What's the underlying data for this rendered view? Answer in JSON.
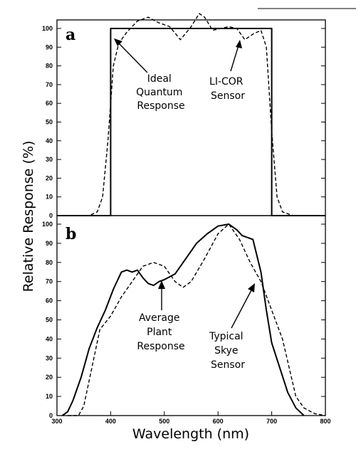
{
  "chart_data": [
    {
      "panel": "a",
      "type": "line",
      "ylabel": "Relative Response (%)",
      "xlim": [
        300,
        800
      ],
      "ylim": [
        0,
        100
      ],
      "yticks": [
        0,
        10,
        20,
        30,
        40,
        50,
        60,
        70,
        80,
        90,
        100
      ],
      "series": [
        {
          "name": "Ideal Quantum Response",
          "style": "solid",
          "x": [
            300,
            400,
            400,
            700,
            700,
            800
          ],
          "y": [
            0,
            0,
            100,
            100,
            0,
            0
          ]
        },
        {
          "name": "LI-COR Sensor",
          "style": "dashed",
          "x": [
            300,
            360,
            375,
            385,
            395,
            405,
            415,
            430,
            450,
            470,
            490,
            510,
            530,
            550,
            565,
            575,
            590,
            605,
            620,
            635,
            650,
            665,
            680,
            690,
            700,
            710,
            720,
            740,
            800
          ],
          "y": [
            0,
            0,
            2,
            10,
            40,
            80,
            92,
            98,
            104,
            106,
            103,
            101,
            94,
            101,
            108,
            106,
            99,
            100,
            101,
            100,
            94,
            97,
            99,
            90,
            45,
            10,
            2,
            0,
            0
          ]
        }
      ],
      "annotations": [
        {
          "text": [
            "Ideal",
            "Quantum",
            "Response"
          ]
        },
        {
          "text": [
            "LI-COR",
            "Sensor"
          ]
        }
      ]
    },
    {
      "panel": "b",
      "type": "line",
      "xlabel": "Wavelength (nm)",
      "xlim": [
        300,
        800
      ],
      "ylim": [
        0,
        100
      ],
      "xticks": [
        300,
        400,
        500,
        600,
        700,
        800
      ],
      "yticks": [
        0,
        10,
        20,
        30,
        40,
        50,
        60,
        70,
        80,
        90,
        100
      ],
      "series": [
        {
          "name": "Average Plant Response",
          "style": "solid",
          "x": [
            310,
            320,
            330,
            345,
            360,
            375,
            390,
            405,
            420,
            430,
            440,
            450,
            460,
            470,
            480,
            490,
            500,
            520,
            540,
            560,
            580,
            600,
            620,
            635,
            645,
            655,
            665,
            680,
            690,
            700,
            715,
            730,
            745,
            760
          ],
          "y": [
            0,
            2,
            8,
            20,
            35,
            46,
            55,
            66,
            75,
            76,
            75,
            76,
            72,
            69,
            68,
            70,
            71,
            74,
            82,
            90,
            95,
            99,
            100,
            97,
            94,
            93,
            92,
            75,
            55,
            38,
            25,
            12,
            4,
            0
          ]
        },
        {
          "name": "Typical Skye Sensor",
          "style": "dashed",
          "x": [
            320,
            340,
            350,
            365,
            380,
            400,
            420,
            440,
            460,
            480,
            500,
            520,
            535,
            550,
            575,
            600,
            620,
            640,
            660,
            680,
            700,
            720,
            735,
            745,
            760,
            780,
            800
          ],
          "y": [
            0,
            0,
            5,
            25,
            45,
            52,
            62,
            70,
            78,
            80,
            78,
            70,
            67,
            70,
            82,
            95,
            100,
            92,
            80,
            70,
            55,
            40,
            22,
            10,
            4,
            1,
            0
          ]
        }
      ],
      "annotations": [
        {
          "text": [
            "Average",
            "Plant",
            "Response"
          ]
        },
        {
          "text": [
            "Typical",
            "Skye",
            "Sensor"
          ]
        }
      ]
    }
  ]
}
